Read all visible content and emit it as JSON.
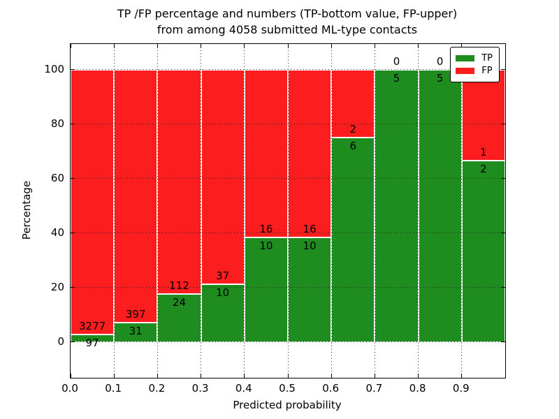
{
  "chart_data": {
    "type": "bar",
    "stacked": true,
    "orientation": "vertical",
    "title_lines": [
      "TP /FP percentage and numbers (TP-bottom value, FP-upper)",
      "from among 4058 submitted ML-type contacts"
    ],
    "xlabel": "Predicted probability",
    "ylabel": "Percentage",
    "total_contacts": 4058,
    "xlim": [
      0.0,
      1.0
    ],
    "ylim": [
      -13.1,
      109.4
    ],
    "grid": true,
    "legend_position": "upper-right",
    "x_tick_labels": [
      "0.0",
      "0.1",
      "0.2",
      "0.3",
      "0.4",
      "0.5",
      "0.6",
      "0.7",
      "0.8",
      "0.9"
    ],
    "x_tick_values": [
      0.0,
      0.1,
      0.2,
      0.3,
      0.4,
      0.5,
      0.6,
      0.7,
      0.8,
      0.9
    ],
    "y_tick_values": [
      0,
      20,
      40,
      60,
      80,
      100
    ],
    "bin_edges": [
      0.0,
      0.1,
      0.2,
      0.3,
      0.4,
      0.5,
      0.6,
      0.7,
      0.8,
      0.9,
      1.0
    ],
    "series": [
      {
        "name": "TP",
        "color": "#1f8c1f",
        "counts": [
          97,
          31,
          24,
          10,
          10,
          10,
          6,
          5,
          5,
          2
        ]
      },
      {
        "name": "FP",
        "color": "#fc1e1e",
        "counts": [
          3277,
          397,
          112,
          37,
          16,
          16,
          2,
          0,
          0,
          1
        ]
      }
    ],
    "tp_percentages": [
      2.88,
      7.24,
      17.65,
      21.28,
      38.46,
      38.46,
      75.0,
      100.0,
      100.0,
      66.67
    ],
    "colors": {
      "tp": "#1f8c1f",
      "fp": "#fc1e1e",
      "grid": "#1a1a1a",
      "bar_edge": "#ffffff"
    }
  }
}
